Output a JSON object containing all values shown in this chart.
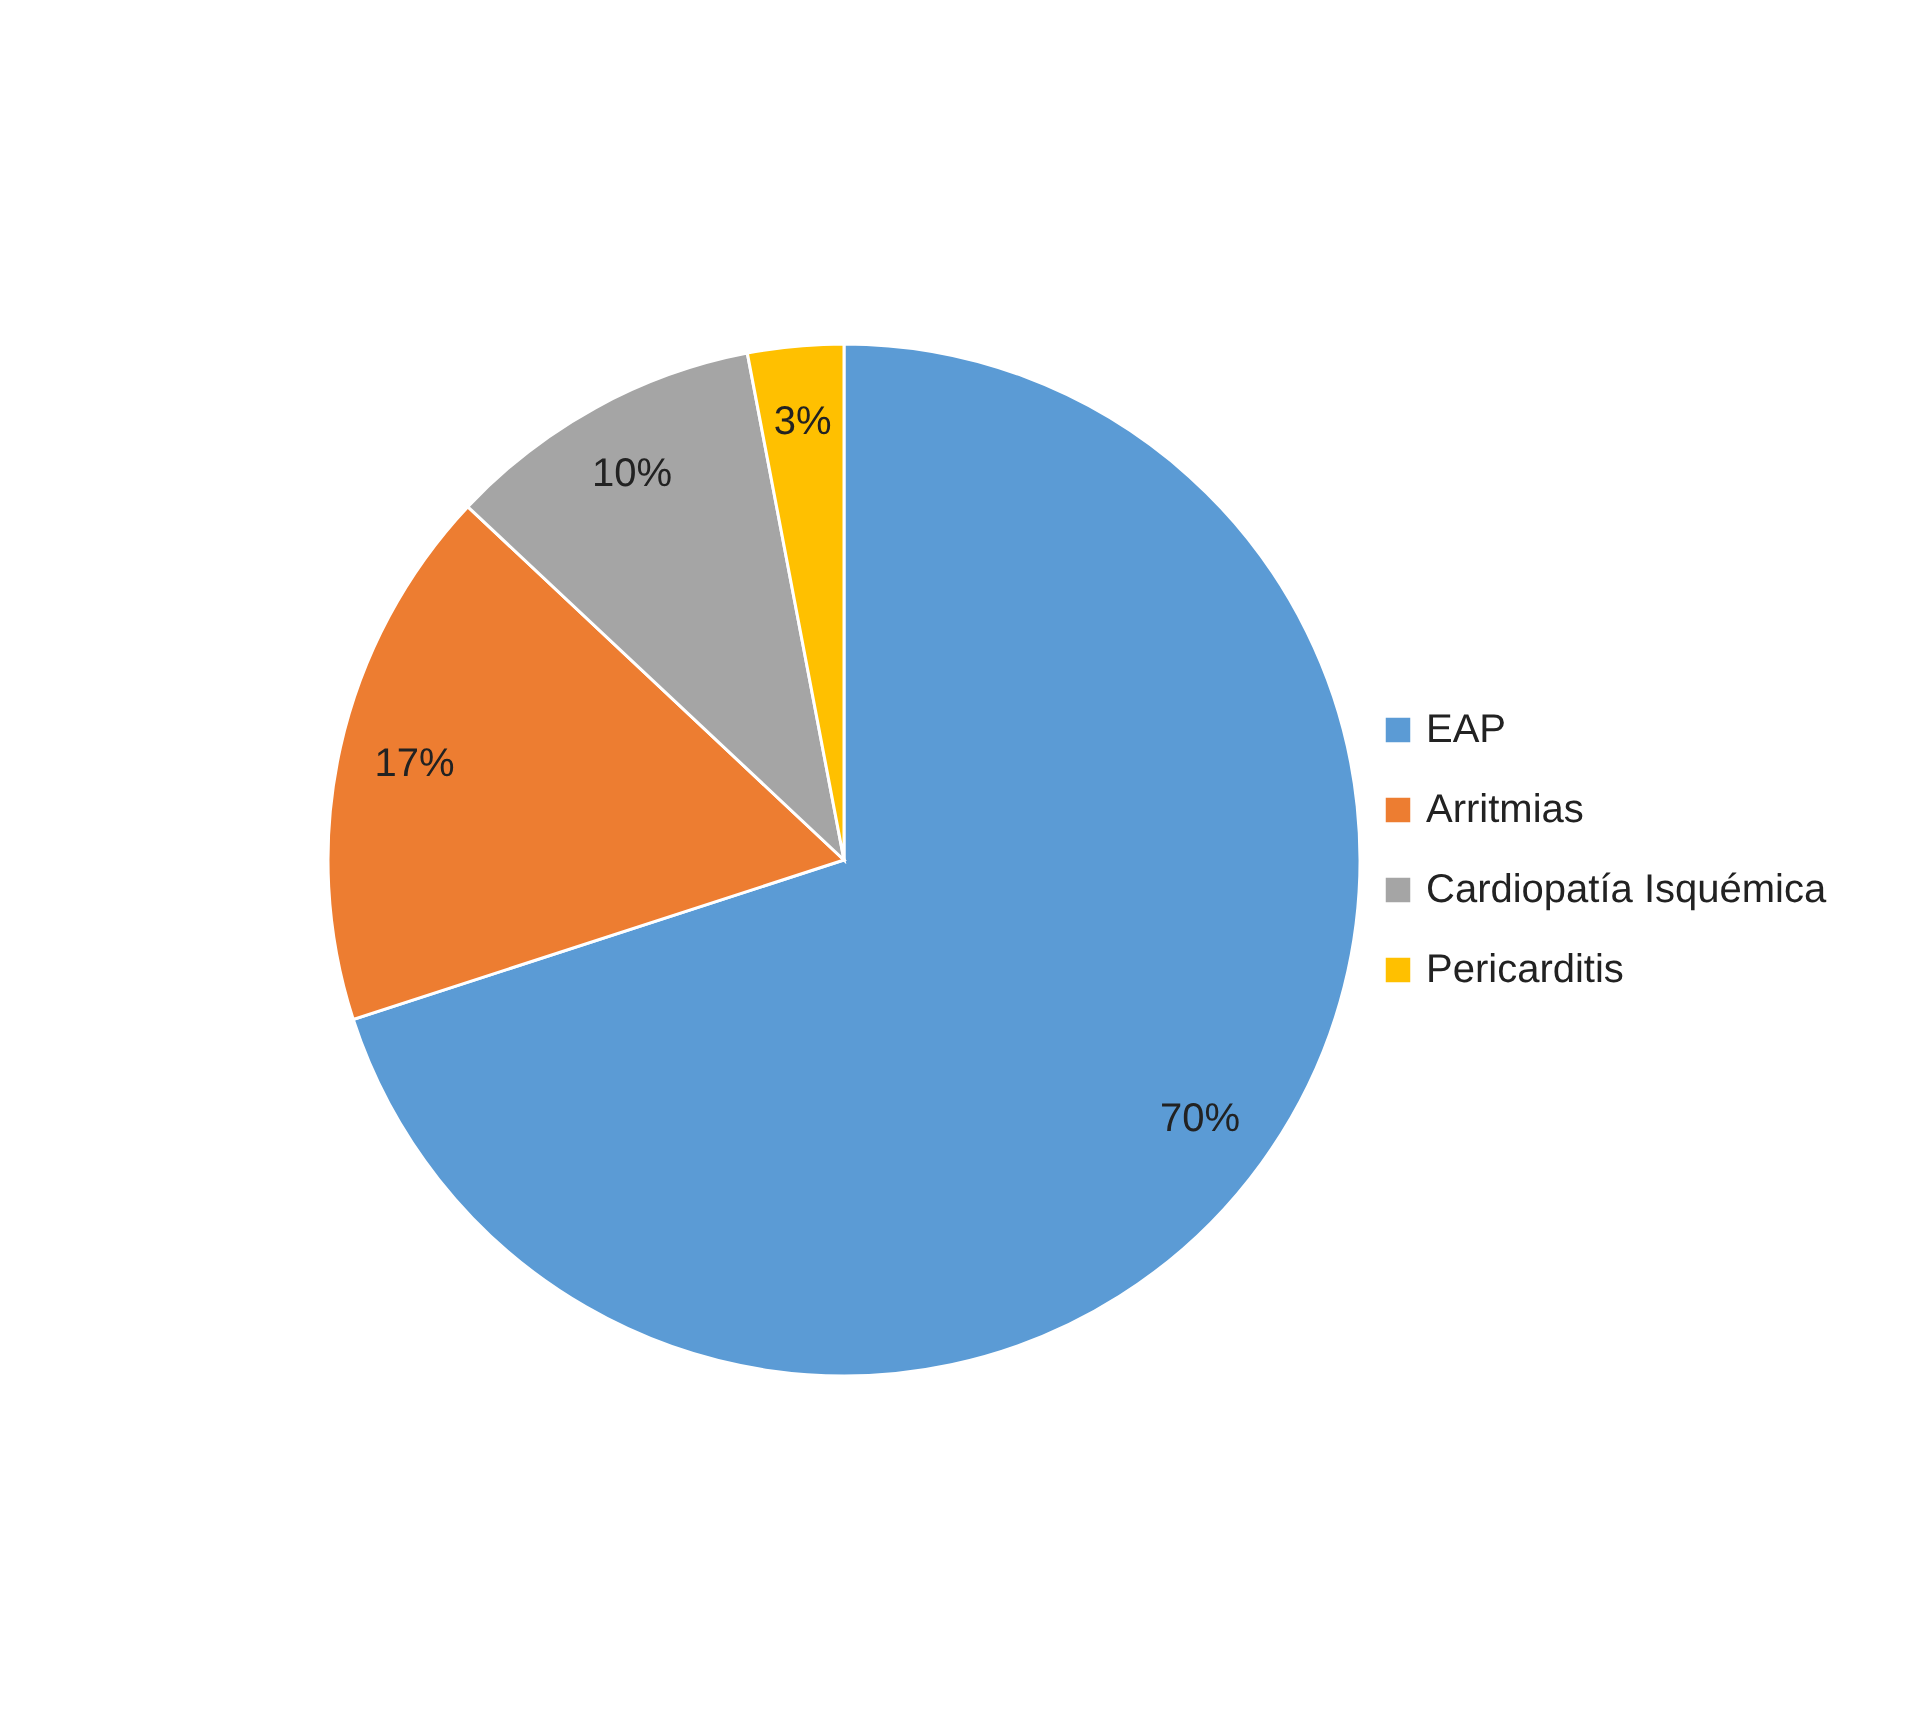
{
  "chart_data": {
    "type": "pie",
    "categories": [
      "EAP",
      "Arritmias",
      "Cardiopatía Isquémica",
      "Pericarditis"
    ],
    "values": [
      70,
      17,
      10,
      3
    ],
    "colors": [
      "#5b9bd5",
      "#ed7d31",
      "#a5a5a5",
      "#ffc000"
    ],
    "value_labels": [
      "70%",
      "17%",
      "10%",
      "3%"
    ],
    "legend": "right"
  }
}
